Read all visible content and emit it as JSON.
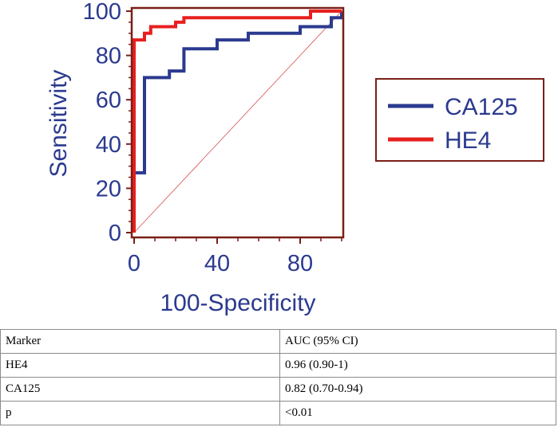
{
  "chart_data": {
    "type": "line",
    "title": "",
    "xlabel": "100-Specificity",
    "ylabel": "Sensitivity",
    "xlim": [
      0,
      100
    ],
    "ylim": [
      0,
      100
    ],
    "x_ticks": [
      0,
      40,
      80
    ],
    "y_ticks": [
      0,
      20,
      40,
      60,
      80,
      100
    ],
    "x_tick_labels": [
      "0",
      "40",
      "80"
    ],
    "y_tick_labels": [
      "0",
      "20",
      "40",
      "60",
      "80",
      "100"
    ],
    "legend_position": "right",
    "reference_line": true,
    "series": [
      {
        "name": "CA125",
        "color": "#2b3a8f",
        "x": [
          0,
          0,
          5,
          5,
          17,
          17,
          24,
          24,
          40,
          40,
          55,
          55,
          80,
          80,
          95,
          95,
          100,
          100
        ],
        "y": [
          0,
          27,
          27,
          70,
          70,
          73,
          73,
          83,
          83,
          87,
          87,
          90,
          90,
          93,
          93,
          97,
          97,
          100
        ]
      },
      {
        "name": "HE4",
        "color": "#e81f1f",
        "x": [
          0,
          0,
          5,
          5,
          8,
          8,
          10,
          10,
          20,
          20,
          24,
          24,
          85,
          85,
          100
        ],
        "y": [
          0,
          87,
          87,
          90,
          90,
          93,
          93,
          93,
          93,
          95,
          95,
          97,
          97,
          100,
          100
        ]
      }
    ],
    "colors": {
      "frame": "#7a1f16",
      "text": "#2b3a8f",
      "reference": "#d45050"
    }
  },
  "table": {
    "headers": [
      "Marker",
      "AUC (95% CI)"
    ],
    "rows": [
      [
        "HE4",
        "0.96 (0.90-1)"
      ],
      [
        "CA125",
        "0.82 (0.70-0.94)"
      ],
      [
        "p",
        "<0.01"
      ]
    ]
  }
}
